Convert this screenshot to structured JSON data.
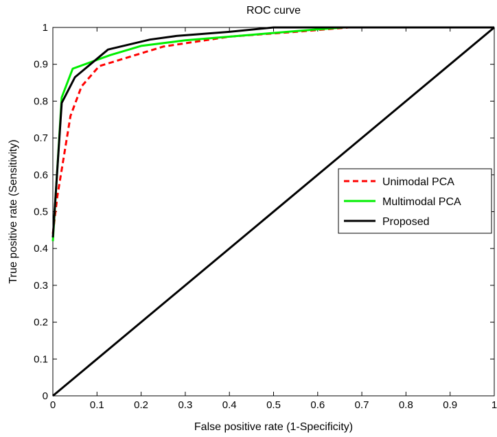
{
  "chart_data": {
    "type": "line",
    "title": "ROC curve",
    "xlabel": "False positive rate (1-Specificity)",
    "ylabel": "True positive rate (Sensitivity)",
    "xlim": [
      0,
      1
    ],
    "ylim": [
      0,
      1
    ],
    "x_ticks": [
      "0",
      "0.1",
      "0.2",
      "0.3",
      "0.4",
      "0.5",
      "0.6",
      "0.7",
      "0.8",
      "0.9",
      "1"
    ],
    "y_ticks": [
      "0",
      "0.1",
      "0.2",
      "0.3",
      "0.4",
      "0.5",
      "0.6",
      "0.7",
      "0.8",
      "0.9",
      "1"
    ],
    "grid": false,
    "legend_position": "right-middle",
    "series": [
      {
        "name": "Unimodal PCA",
        "color": "#ff0000",
        "style": "dashed",
        "x": [
          0,
          0.01,
          0.04,
          0.065,
          0.105,
          0.25,
          0.4,
          0.55,
          0.67,
          1.0
        ],
        "y": [
          0.44,
          0.54,
          0.76,
          0.84,
          0.895,
          0.948,
          0.975,
          0.988,
          1.0,
          1.0
        ]
      },
      {
        "name": "Multimodal PCA",
        "color": "#00ee00",
        "style": "solid",
        "x": [
          0,
          0.02,
          0.045,
          0.13,
          0.2,
          0.3,
          0.45,
          0.6,
          0.66,
          1.0
        ],
        "y": [
          0.42,
          0.81,
          0.888,
          0.925,
          0.95,
          0.965,
          0.98,
          0.995,
          1.0,
          1.0
        ]
      },
      {
        "name": "Proposed",
        "color": "#000000",
        "style": "solid",
        "x": [
          0,
          0.02,
          0.05,
          0.125,
          0.22,
          0.28,
          0.4,
          0.5,
          0.55,
          1.0
        ],
        "y": [
          0.43,
          0.795,
          0.865,
          0.94,
          0.967,
          0.977,
          0.988,
          1.0,
          1.0,
          1.0
        ]
      },
      {
        "name": "",
        "color": "#000000",
        "style": "solid",
        "x": [
          0,
          1
        ],
        "y": [
          0,
          1
        ]
      }
    ]
  }
}
